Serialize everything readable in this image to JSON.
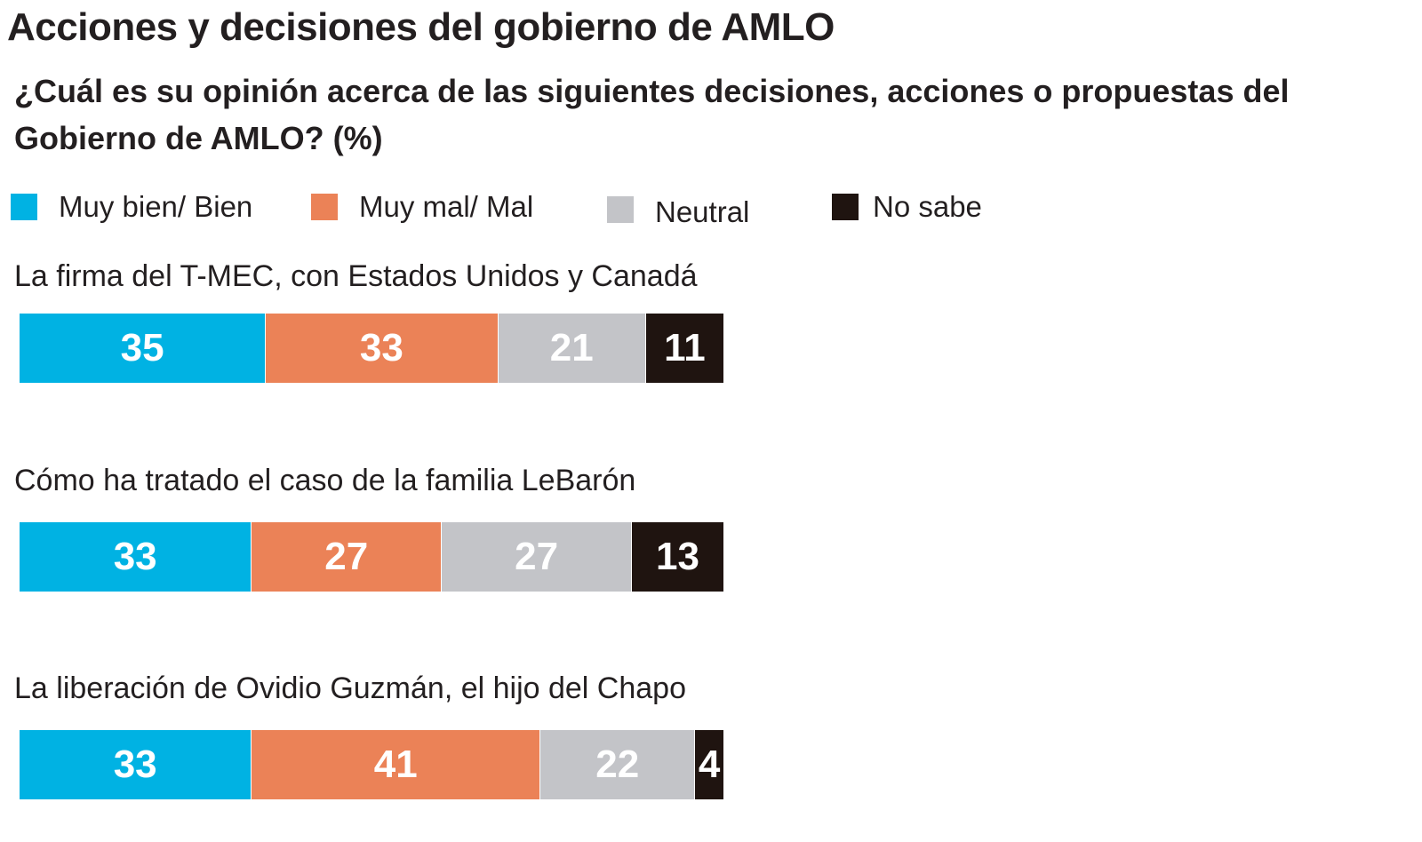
{
  "header": {
    "title": "Acciones y decisiones del gobierno de AMLO",
    "subtitle": "¿Cuál es su opinión acerca de las siguientes decisiones, acciones o propuestas del Gobierno de AMLO? (%)"
  },
  "chart_data": {
    "type": "bar",
    "orientation": "horizontal-stacked-100",
    "title": "Acciones y decisiones del gobierno de AMLO",
    "subtitle": "¿Cuál es su opinión acerca de las siguientes decisiones, acciones o propuestas del Gobierno de AMLO? (%)",
    "xlabel": "",
    "ylabel": "",
    "legend_position": "top-left",
    "grid": false,
    "categories": [
      "La firma del T-MEC, con Estados Unidos y Canadá",
      "Cómo ha tratado el caso de la familia LeBarón",
      "La liberación de Ovidio Guzmán, el hijo del Chapo"
    ],
    "series": [
      {
        "name": "Muy bien/ Bien",
        "color": "#00b2e3",
        "values": [
          35,
          33,
          33
        ]
      },
      {
        "name": "Muy mal/ Mal",
        "color": "#eb8257",
        "values": [
          33,
          27,
          41
        ]
      },
      {
        "name": "Neutral",
        "color": "#c3c4c8",
        "values": [
          21,
          27,
          22
        ]
      },
      {
        "name": "No sabe",
        "color": "#1f1410",
        "values": [
          11,
          13,
          4
        ]
      }
    ]
  }
}
